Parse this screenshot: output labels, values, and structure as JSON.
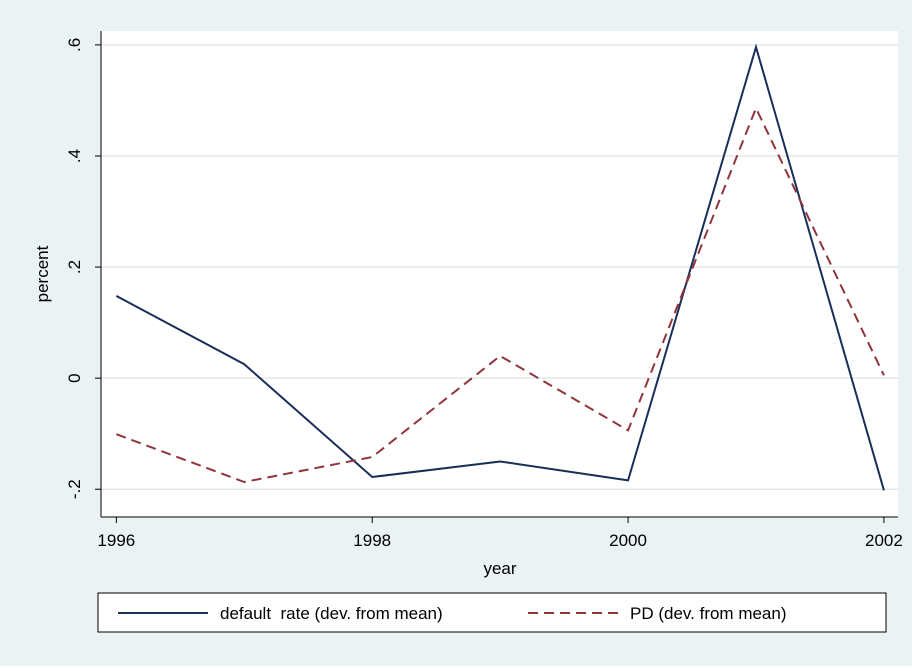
{
  "chart_data": {
    "type": "line",
    "x": [
      1996,
      1997,
      1998,
      1999,
      2000,
      2001,
      2002
    ],
    "series": [
      {
        "name": "default  rate (dev. from mean)",
        "color": "#1a2e5a",
        "dash": false,
        "values": [
          0.148,
          0.025,
          -0.178,
          -0.15,
          -0.184,
          0.596,
          -0.202
        ]
      },
      {
        "name": "PD (dev. from mean)",
        "color": "#90353b",
        "dash": true,
        "values": [
          -0.101,
          -0.187,
          -0.142,
          0.04,
          -0.094,
          0.486,
          0.005
        ]
      }
    ],
    "xlabel": "year",
    "ylabel": "percent",
    "xlim": [
      1995.88,
      2002.11
    ],
    "ylim": [
      -0.25,
      0.625
    ],
    "xticks": [
      1996,
      1998,
      2000,
      2002
    ],
    "yticks": [
      {
        "value": -0.2,
        "label": "-.2"
      },
      0,
      {
        "value": 0.2,
        "label": ".2"
      },
      {
        "value": 0.4,
        "label": ".4"
      },
      {
        "value": 0.6,
        "label": ".6"
      }
    ],
    "grid": true,
    "legend": "bottom"
  }
}
